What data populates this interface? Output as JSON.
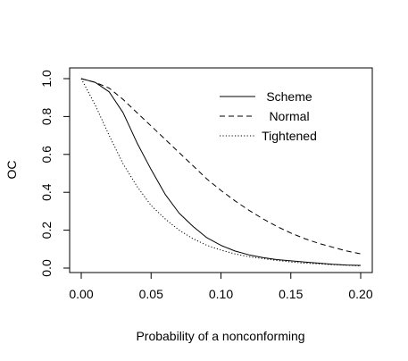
{
  "chart_data": {
    "type": "line",
    "xlabel": "Probability of a nonconforming",
    "ylabel": "OC",
    "xlim": [
      0.0,
      0.2
    ],
    "ylim": [
      0.0,
      1.0
    ],
    "x_ticks": [
      "0.00",
      "0.05",
      "0.10",
      "0.15",
      "0.20"
    ],
    "y_ticks": [
      "0.0",
      "0.2",
      "0.4",
      "0.6",
      "0.8",
      "1.0"
    ],
    "grid": false,
    "legend_position": "top-right",
    "x": [
      0.0,
      0.01,
      0.02,
      0.03,
      0.04,
      0.05,
      0.06,
      0.07,
      0.08,
      0.09,
      0.1,
      0.11,
      0.12,
      0.13,
      0.14,
      0.15,
      0.16,
      0.17,
      0.18,
      0.19,
      0.2
    ],
    "series": [
      {
        "name": "Scheme",
        "dash": "solid",
        "values": [
          1.0,
          0.98,
          0.93,
          0.82,
          0.66,
          0.52,
          0.39,
          0.29,
          0.22,
          0.16,
          0.12,
          0.09,
          0.07,
          0.055,
          0.045,
          0.038,
          0.032,
          0.026,
          0.02,
          0.016,
          0.014
        ]
      },
      {
        "name": "Normal",
        "dash": "dashed",
        "values": [
          1.0,
          0.98,
          0.95,
          0.89,
          0.82,
          0.75,
          0.68,
          0.61,
          0.54,
          0.47,
          0.41,
          0.355,
          0.305,
          0.26,
          0.22,
          0.185,
          0.155,
          0.13,
          0.11,
          0.09,
          0.075
        ]
      },
      {
        "name": "Tightened",
        "dash": "dotted",
        "values": [
          1.0,
          0.86,
          0.7,
          0.55,
          0.43,
          0.33,
          0.26,
          0.2,
          0.155,
          0.12,
          0.095,
          0.075,
          0.06,
          0.05,
          0.04,
          0.032,
          0.026,
          0.022,
          0.018,
          0.015,
          0.012
        ]
      }
    ]
  }
}
